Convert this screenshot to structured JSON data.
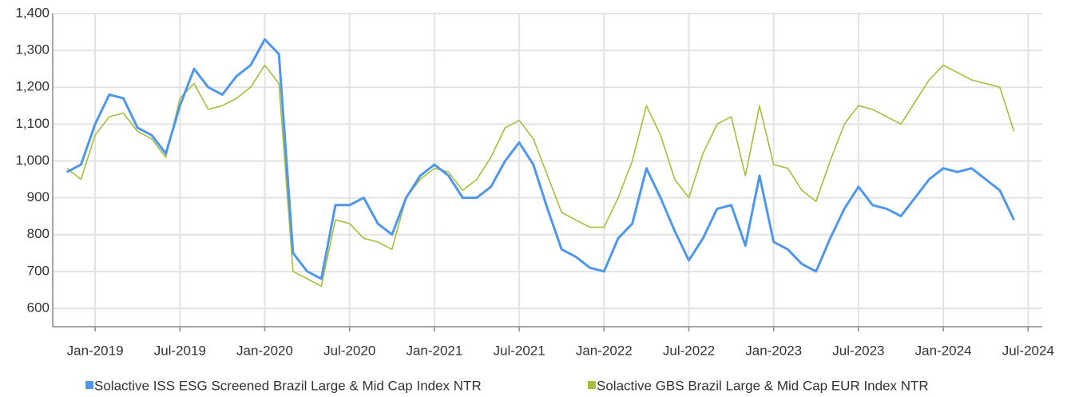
{
  "chart_data": {
    "type": "line",
    "x": [
      "2018-11",
      "2018-12",
      "2019-01",
      "2019-02",
      "2019-03",
      "2019-04",
      "2019-05",
      "2019-06",
      "2019-07",
      "2019-08",
      "2019-09",
      "2019-10",
      "2019-11",
      "2019-12",
      "2020-01",
      "2020-02",
      "2020-03",
      "2020-04",
      "2020-05",
      "2020-06",
      "2020-07",
      "2020-08",
      "2020-09",
      "2020-10",
      "2020-11",
      "2020-12",
      "2021-01",
      "2021-02",
      "2021-03",
      "2021-04",
      "2021-05",
      "2021-06",
      "2021-07",
      "2021-08",
      "2021-09",
      "2021-10",
      "2021-11",
      "2021-12",
      "2022-01",
      "2022-02",
      "2022-03",
      "2022-04",
      "2022-05",
      "2022-06",
      "2022-07",
      "2022-08",
      "2022-09",
      "2022-10",
      "2022-11",
      "2022-12",
      "2023-01",
      "2023-02",
      "2023-03",
      "2023-04",
      "2023-05",
      "2023-06",
      "2023-07",
      "2023-08",
      "2023-09",
      "2023-10",
      "2023-11",
      "2023-12",
      "2024-01",
      "2024-02",
      "2024-03",
      "2024-04",
      "2024-05",
      "2024-06"
    ],
    "series": [
      {
        "name": "Solactive ISS ESG Screened Brazil Large & Mid Cap Index NTR",
        "color": "#4f97ea",
        "values": [
          970,
          990,
          1100,
          1180,
          1170,
          1090,
          1070,
          1020,
          1150,
          1250,
          1200,
          1180,
          1230,
          1260,
          1330,
          1290,
          750,
          700,
          680,
          880,
          880,
          900,
          830,
          800,
          900,
          960,
          990,
          960,
          900,
          900,
          930,
          1000,
          1050,
          990,
          870,
          760,
          740,
          710,
          700,
          790,
          830,
          980,
          900,
          810,
          730,
          790,
          870,
          880,
          770,
          960,
          780,
          760,
          720,
          700,
          790,
          870,
          930,
          880,
          870,
          850,
          900,
          950,
          980,
          970,
          980,
          950,
          920,
          840
        ]
      },
      {
        "name": "Solactive GBS Brazil Large & Mid Cap EUR Index NTR",
        "color": "#a4bf3a",
        "values": [
          980,
          950,
          1070,
          1120,
          1130,
          1080,
          1060,
          1010,
          1170,
          1210,
          1140,
          1150,
          1170,
          1200,
          1260,
          1210,
          700,
          680,
          660,
          840,
          830,
          790,
          780,
          760,
          900,
          950,
          980,
          970,
          920,
          950,
          1010,
          1090,
          1110,
          1060,
          960,
          860,
          840,
          820,
          820,
          900,
          1000,
          1150,
          1070,
          950,
          900,
          1020,
          1100,
          1120,
          960,
          1150,
          990,
          980,
          920,
          890,
          1000,
          1100,
          1150,
          1140,
          1120,
          1100,
          1160,
          1220,
          1260,
          1240,
          1220,
          1210,
          1200,
          1080
        ]
      }
    ],
    "xlim": [
      "2018-10",
      "2024-08"
    ],
    "xticks": [
      {
        "value": "2019-01",
        "label": "Jan-2019"
      },
      {
        "value": "2019-07",
        "label": "Jul-2019"
      },
      {
        "value": "2020-01",
        "label": "Jan-2020"
      },
      {
        "value": "2020-07",
        "label": "Jul-2020"
      },
      {
        "value": "2021-01",
        "label": "Jan-2021"
      },
      {
        "value": "2021-07",
        "label": "Jul-2021"
      },
      {
        "value": "2022-01",
        "label": "Jan-2022"
      },
      {
        "value": "2022-07",
        "label": "Jul-2022"
      },
      {
        "value": "2023-01",
        "label": "Jan-2023"
      },
      {
        "value": "2023-07",
        "label": "Jul-2023"
      },
      {
        "value": "2024-01",
        "label": "Jan-2024"
      },
      {
        "value": "2024-07",
        "label": "Jul-2024"
      }
    ],
    "ylim": [
      550,
      1400
    ],
    "yticks": [
      600,
      700,
      800,
      900,
      {
        "value": 1000,
        "label": "1,000"
      },
      {
        "value": 1100,
        "label": "1,100"
      },
      {
        "value": 1200,
        "label": "1,200"
      },
      {
        "value": 1300,
        "label": "1,300"
      },
      {
        "value": 1400,
        "label": "1,400"
      }
    ],
    "grid": true,
    "legend": "bottom"
  }
}
